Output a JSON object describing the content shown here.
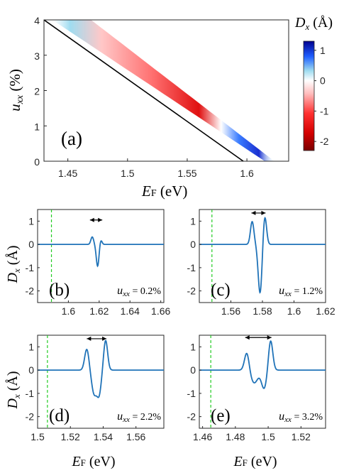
{
  "chart_data": [
    {
      "type": "heatmap",
      "panel_label": "(a)",
      "xlabel_main": "E",
      "xlabel_sub": "F",
      "xlabel_unit": " (eV)",
      "ylabel_main": "u",
      "ylabel_sub": "xx",
      "ylabel_unit": " (%)",
      "xlim": [
        1.43,
        1.635
      ],
      "ylim": [
        0,
        4
      ],
      "xticks": [
        1.45,
        1.5,
        1.55,
        1.6
      ],
      "xticklabels": [
        "1.45",
        "1.5",
        "1.55",
        "1.6"
      ],
      "yticks": [
        0,
        1,
        2,
        3,
        4
      ],
      "yticklabels": [
        "0",
        "1",
        "2",
        "3",
        "4"
      ],
      "black_line": [
        [
          1.43,
          4.0
        ],
        [
          1.597,
          0.0
        ]
      ],
      "band_center": [
        [
          1.461,
          4.0
        ],
        [
          1.621,
          0.0
        ]
      ],
      "colorbar": {
        "title_main": "D",
        "title_sub": "x",
        "title_unit": " (Å)",
        "min": -2.3,
        "max": 1.3,
        "ticks": [
          1,
          0,
          -1,
          -2
        ],
        "ticklabels": [
          "1",
          "0",
          "-1",
          "-2"
        ],
        "stops": [
          "#7a0000",
          "#d40000",
          "#ff3030",
          "#ffbcbc",
          "#ffffff",
          "#9fdcf0",
          "#1f5fff",
          "#00008f"
        ]
      }
    },
    {
      "type": "line",
      "panel_label": "(b)",
      "strain_label": "u",
      "strain_sub": "xx",
      "strain_value": " = 0.2%",
      "xlim": [
        1.58,
        1.662
      ],
      "ylim": [
        -2.5,
        1.5
      ],
      "xticks": [
        1.6,
        1.62,
        1.64,
        1.66
      ],
      "xticklabels": [
        "1.6",
        "1.62",
        "1.64",
        "1.66"
      ],
      "yticks": [
        1,
        0,
        -1,
        -2
      ],
      "yticklabels": [
        "1",
        "0",
        "-1",
        "-2"
      ],
      "dashed_x": 1.589,
      "arrow_x": [
        1.614,
        1.622
      ],
      "arrow_y": 1.05,
      "series": [
        {
          "color": "#2073b8",
          "peaks": [
            {
              "c": 1.6155,
              "a": 0.32,
              "w": 0.0009
            },
            {
              "c": 1.619,
              "a": -0.94,
              "w": 0.0009
            },
            {
              "c": 1.621,
              "a": 0.2,
              "w": 0.0008
            }
          ]
        }
      ]
    },
    {
      "type": "line",
      "panel_label": "(c)",
      "strain_label": "u",
      "strain_sub": "xx",
      "strain_value": " = 1.2%",
      "xlim": [
        1.54,
        1.62
      ],
      "ylim": [
        -2.5,
        1.5
      ],
      "xticks": [
        1.56,
        1.58,
        1.6,
        1.62
      ],
      "xticklabels": [
        "1.56",
        "1.58",
        "1.6",
        "1.62"
      ],
      "yticks": [
        1,
        0,
        -1,
        -2
      ],
      "yticklabels": [
        "1",
        "0",
        "-1",
        "-2"
      ],
      "dashed_x": 1.548,
      "arrow_x": [
        1.573,
        1.582
      ],
      "arrow_y": 1.35,
      "series": [
        {
          "color": "#2073b8",
          "peaks": [
            {
              "c": 1.5735,
              "a": 0.98,
              "w": 0.0011
            },
            {
              "c": 1.5785,
              "a": -2.1,
              "w": 0.0012
            },
            {
              "c": 1.5815,
              "a": 1.22,
              "w": 0.0011
            }
          ]
        }
      ]
    },
    {
      "type": "line",
      "panel_label": "(d)",
      "strain_label": "u",
      "strain_sub": "xx",
      "strain_value": " = 2.2%",
      "xlim": [
        1.5,
        1.577
      ],
      "ylim": [
        -2.5,
        1.5
      ],
      "xticks": [
        1.5,
        1.52,
        1.54,
        1.56
      ],
      "xticklabels": [
        "1.5",
        "1.52",
        "1.54",
        "1.56"
      ],
      "yticks": [
        1,
        0,
        -1,
        -2
      ],
      "yticklabels": [
        "1",
        "0",
        "-1",
        "-2"
      ],
      "dashed_x": 1.506,
      "arrow_x": [
        1.53,
        1.542
      ],
      "arrow_y": 1.35,
      "series": [
        {
          "color": "#2073b8",
          "peaks": [
            {
              "c": 1.53,
              "a": 0.9,
              "w": 0.0013
            },
            {
              "c": 1.5345,
              "a": -1.0,
              "w": 0.0015
            },
            {
              "c": 1.5375,
              "a": -1.0,
              "w": 0.0013
            },
            {
              "c": 1.5415,
              "a": 1.28,
              "w": 0.0012
            }
          ]
        }
      ]
    },
    {
      "type": "line",
      "panel_label": "(e)",
      "strain_label": "u",
      "strain_sub": "xx",
      "strain_value": " = 3.2%",
      "xlim": [
        1.458,
        1.535
      ],
      "ylim": [
        -2.5,
        1.5
      ],
      "xticks": [
        1.46,
        1.48,
        1.5,
        1.52
      ],
      "xticklabels": [
        "1.46",
        "1.48",
        "1.5",
        "1.52"
      ],
      "yticks": [
        1,
        0,
        -1,
        -2
      ],
      "yticklabels": [
        "1",
        "0",
        "-1",
        "-2"
      ],
      "dashed_x": 1.465,
      "arrow_x": [
        1.486,
        1.502
      ],
      "arrow_y": 1.4,
      "series": [
        {
          "color": "#2073b8",
          "peaks": [
            {
              "c": 1.487,
              "a": 0.78,
              "w": 0.0014
            },
            {
              "c": 1.4915,
              "a": -0.55,
              "w": 0.0022
            },
            {
              "c": 1.4975,
              "a": -0.78,
              "w": 0.0016
            },
            {
              "c": 1.5015,
              "a": 1.28,
              "w": 0.0013
            }
          ]
        }
      ]
    }
  ],
  "shared_labels": {
    "dx_main": "D",
    "dx_sub": "x",
    "dx_unit": " (Å)",
    "ef_main": "E",
    "ef_sub": "F",
    "ef_unit": " (eV)"
  }
}
